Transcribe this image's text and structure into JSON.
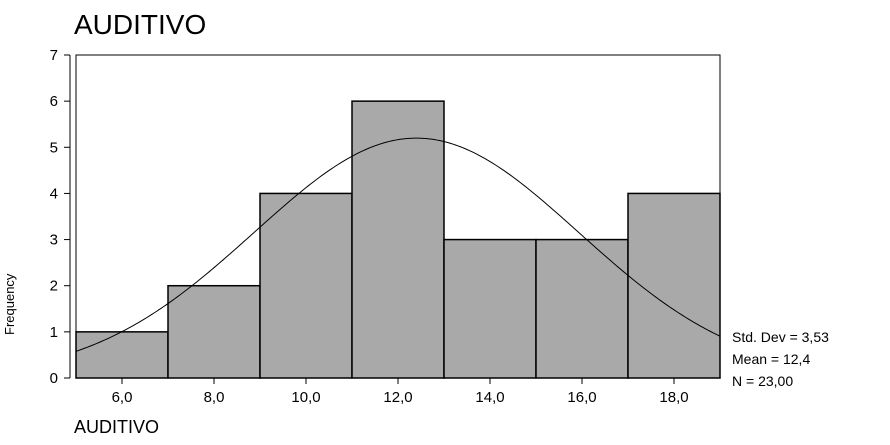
{
  "chart_data": {
    "type": "bar",
    "title": "AUDITIVO",
    "xlabel": "AUDITIVO",
    "ylabel": "Frequency",
    "bins": [
      {
        "from": 5,
        "to": 7,
        "count": 1
      },
      {
        "from": 7,
        "to": 9,
        "count": 2
      },
      {
        "from": 9,
        "to": 11,
        "count": 4
      },
      {
        "from": 11,
        "to": 13,
        "count": 6
      },
      {
        "from": 13,
        "to": 15,
        "count": 3
      },
      {
        "from": 15,
        "to": 17,
        "count": 3
      },
      {
        "from": 17,
        "to": 19,
        "count": 4
      }
    ],
    "xlim": [
      5,
      19
    ],
    "ylim": [
      0,
      7
    ],
    "x_ticks": [
      6,
      8,
      10,
      12,
      14,
      16,
      18
    ],
    "x_tick_labels": [
      "6,0",
      "8,0",
      "10,0",
      "12,0",
      "14,0",
      "16,0",
      "18,0"
    ],
    "y_ticks": [
      0,
      1,
      2,
      3,
      4,
      5,
      6,
      7
    ],
    "y_tick_labels": [
      "0",
      "1",
      "2",
      "3",
      "4",
      "5",
      "6",
      "7"
    ],
    "normal_curve": {
      "mean": 12.4,
      "sd": 3.53,
      "n": 23,
      "bin_width": 2
    },
    "stats": {
      "std_dev": "Std. Dev = 3,53",
      "mean": "Mean = 12,4",
      "n": "N = 23,00"
    },
    "grid": false,
    "legend": "none",
    "colors": {
      "bar_fill": "#a9a9a9",
      "bar_stroke": "#000000",
      "curve": "#000000"
    }
  }
}
